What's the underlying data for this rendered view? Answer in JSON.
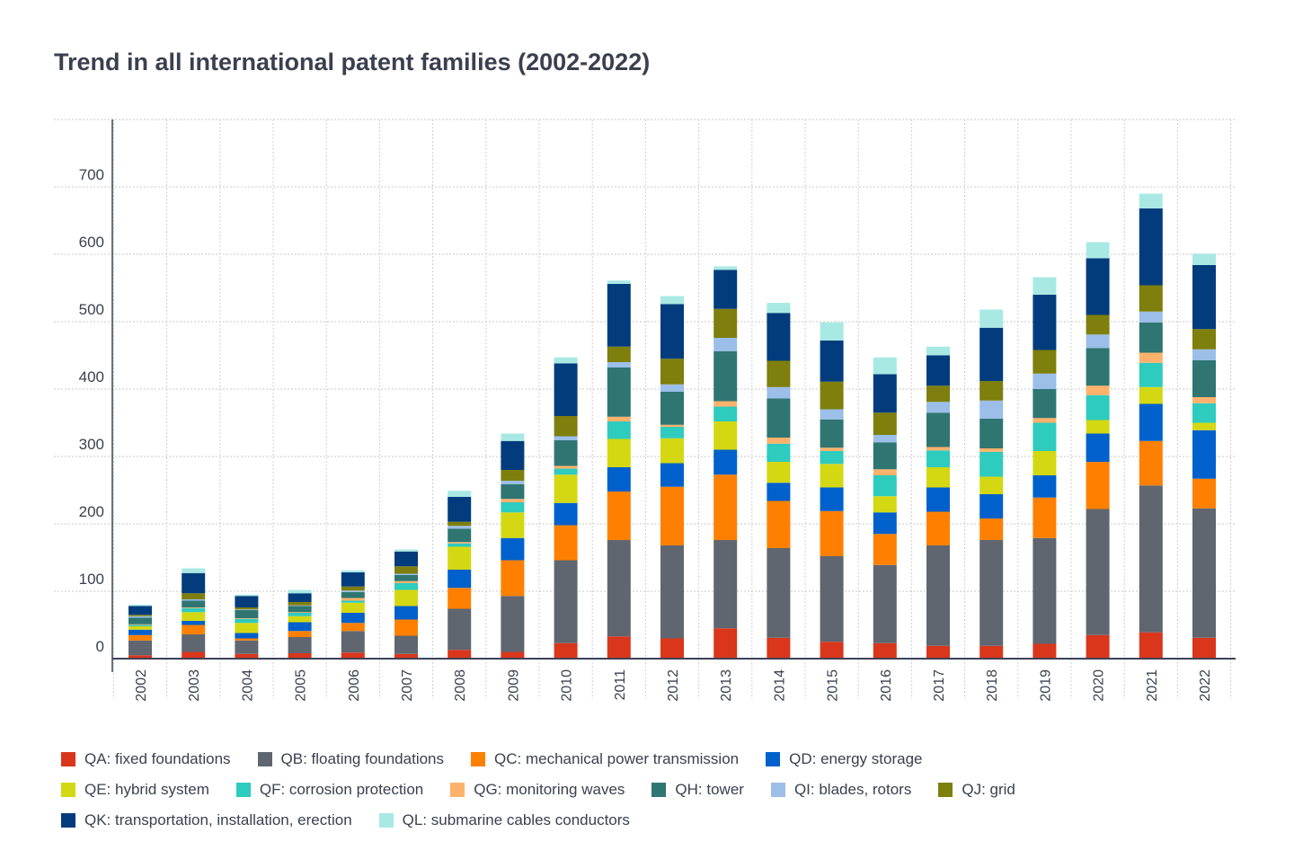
{
  "title": "Trend in all international patent families (2002-2022)",
  "chart_data": {
    "type": "bar",
    "stacked": true,
    "title": "Trend in all international patent families (2002-2022)",
    "xlabel": "",
    "ylabel": "",
    "ylim": [
      0,
      800
    ],
    "yticks": [
      0,
      100,
      200,
      300,
      400,
      500,
      600,
      700
    ],
    "grid": true,
    "legend_position": "bottom",
    "categories": [
      "2002",
      "2003",
      "2004",
      "2005",
      "2006",
      "2007",
      "2008",
      "2009",
      "2010",
      "2011",
      "2012",
      "2013",
      "2014",
      "2015",
      "2016",
      "2017",
      "2018",
      "2019",
      "2020",
      "2021",
      "2022"
    ],
    "series": [
      {
        "name": "QA: fixed foundations",
        "color": "#d9361c",
        "values": [
          5,
          10,
          7,
          8,
          9,
          7,
          13,
          10,
          23,
          33,
          30,
          45,
          31,
          25,
          23,
          19,
          19,
          22,
          35,
          39,
          31
        ]
      },
      {
        "name": "QB: floating foundations",
        "color": "#5f6670",
        "values": [
          22,
          26,
          20,
          24,
          32,
          27,
          61,
          83,
          123,
          143,
          138,
          131,
          133,
          127,
          116,
          149,
          157,
          157,
          187,
          218,
          192
        ]
      },
      {
        "name": "QC: mechanical power transmission",
        "color": "#ff8000",
        "values": [
          8,
          14,
          3,
          9,
          12,
          24,
          31,
          53,
          52,
          72,
          87,
          97,
          70,
          67,
          46,
          50,
          32,
          60,
          70,
          66,
          44
        ]
      },
      {
        "name": "QD: energy storage",
        "color": "#0061cc",
        "values": [
          8,
          6,
          8,
          13,
          15,
          20,
          27,
          33,
          33,
          36,
          35,
          37,
          27,
          35,
          32,
          36,
          36,
          33,
          42,
          55,
          72
        ]
      },
      {
        "name": "QE: hybrid system",
        "color": "#d4d812",
        "values": [
          5,
          13,
          15,
          9,
          15,
          24,
          34,
          38,
          42,
          42,
          37,
          42,
          31,
          35,
          24,
          30,
          26,
          36,
          20,
          25,
          11
        ]
      },
      {
        "name": "QF: corrosion protection",
        "color": "#2ecbbf",
        "values": [
          2,
          6,
          6,
          5,
          3,
          10,
          5,
          15,
          9,
          26,
          17,
          22,
          27,
          19,
          31,
          25,
          37,
          42,
          37,
          36,
          29
        ]
      },
      {
        "name": "QG: monitoring waves",
        "color": "#ffb26b",
        "values": [
          1,
          1,
          1,
          1,
          4,
          3,
          2,
          5,
          4,
          7,
          3,
          8,
          9,
          5,
          9,
          5,
          5,
          7,
          14,
          15,
          9
        ]
      },
      {
        "name": "QH: tower",
        "color": "#2f7672",
        "values": [
          10,
          10,
          12,
          9,
          9,
          9,
          20,
          22,
          38,
          73,
          49,
          74,
          58,
          42,
          40,
          51,
          44,
          43,
          56,
          45,
          55
        ]
      },
      {
        "name": "QI: blades, rotors",
        "color": "#9bbfe9",
        "values": [
          2,
          2,
          1,
          1,
          2,
          2,
          4,
          5,
          6,
          8,
          11,
          20,
          17,
          15,
          11,
          16,
          27,
          23,
          20,
          16,
          16
        ]
      },
      {
        "name": "QJ: grid",
        "color": "#7e7f0c",
        "values": [
          2,
          9,
          3,
          5,
          6,
          11,
          6,
          16,
          30,
          23,
          38,
          43,
          39,
          41,
          33,
          24,
          29,
          35,
          29,
          39,
          30
        ]
      },
      {
        "name": "QK: transportation, installation, erection",
        "color": "#033c7d",
        "values": [
          13,
          30,
          17,
          13,
          21,
          22,
          37,
          43,
          78,
          93,
          81,
          58,
          71,
          61,
          57,
          45,
          79,
          82,
          84,
          114,
          95
        ]
      },
      {
        "name": "QL: submarine cables conductors",
        "color": "#a9e9e4",
        "values": [
          2,
          7,
          2,
          5,
          3,
          3,
          9,
          11,
          9,
          5,
          12,
          5,
          15,
          27,
          25,
          13,
          27,
          26,
          24,
          22,
          17
        ]
      }
    ]
  }
}
